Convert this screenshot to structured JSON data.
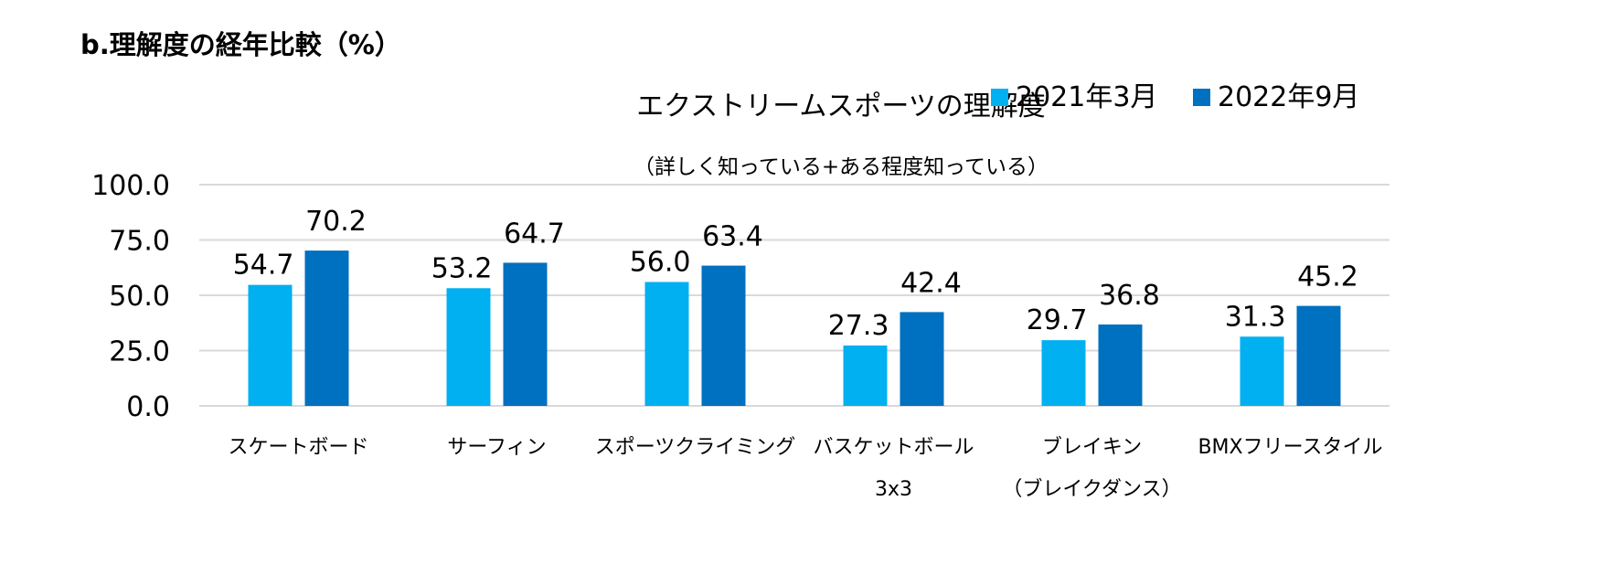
{
  "page": {
    "section_heading": "b.理解度の経年比較（%）"
  },
  "chart_data": {
    "type": "bar",
    "title": "エクストリームスポーツの理解度",
    "subtitle": "（詳しく知っている+ある程度知っている）",
    "categories": [
      [
        "スケートボード"
      ],
      [
        "サーフィン"
      ],
      [
        "スポーツクライミング"
      ],
      [
        "バスケットボール",
        "3x3"
      ],
      [
        "ブレイキン",
        "（ブレイクダンス）"
      ],
      [
        "BMXフリースタイル"
      ]
    ],
    "series": [
      {
        "name": "2021年3月",
        "color": "#00b0f0",
        "values": [
          54.7,
          53.2,
          56.0,
          27.3,
          29.7,
          31.3
        ]
      },
      {
        "name": "2022年9月",
        "color": "#0070c0",
        "values": [
          70.2,
          64.7,
          63.4,
          42.4,
          36.8,
          45.2
        ]
      }
    ],
    "ylim": [
      0,
      100
    ],
    "yticks": [
      0,
      25,
      50,
      75,
      100
    ],
    "ytick_labels": [
      "0.0",
      "25.0",
      "50.0",
      "75.0",
      "100.0"
    ],
    "grid": true,
    "gridline_color": "#d9d9d9",
    "legend_position": "top-right",
    "value_labels": [
      "54.7",
      "53.2",
      "56.0",
      "27.3",
      "29.7",
      "31.3",
      "70.2",
      "64.7",
      "63.4",
      "42.4",
      "36.8",
      "45.2"
    ]
  }
}
